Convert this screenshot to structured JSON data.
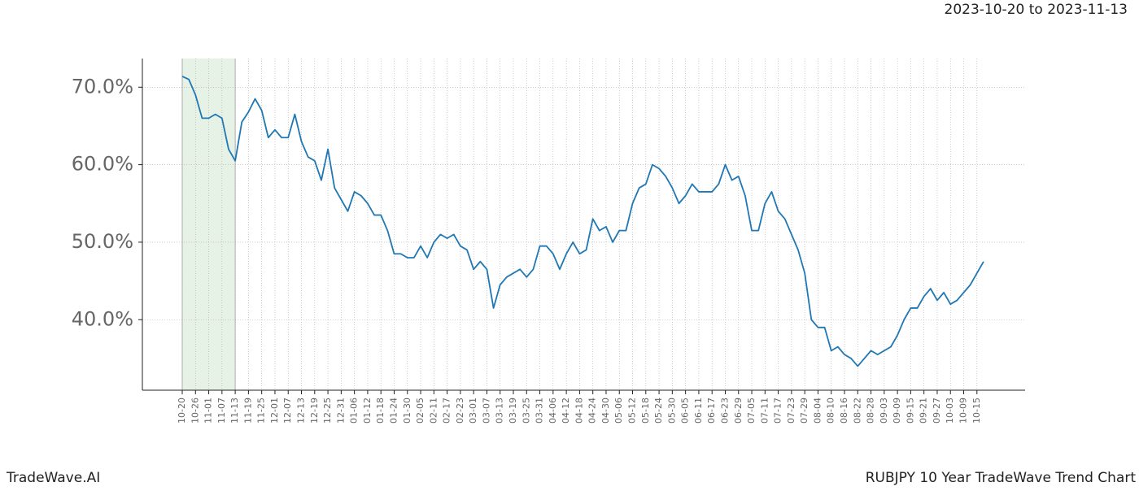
{
  "chart_data": {
    "type": "line",
    "title": "RUBJPY 10 Year TradeWave Trend Chart",
    "subtitle": "2023-10-20 to 2023-11-13",
    "brand": "TradeWave.AI",
    "categories": [
      "10-20",
      null,
      "10-26",
      null,
      "11-01",
      null,
      "11-07",
      null,
      "11-13",
      null,
      "11-19",
      null,
      "11-25",
      null,
      "12-01",
      null,
      "12-07",
      null,
      "12-13",
      null,
      "12-19",
      null,
      "12-25",
      null,
      "12-31",
      null,
      "01-06",
      null,
      "01-12",
      null,
      "01-18",
      null,
      "01-24",
      null,
      "01-30",
      null,
      "02-05",
      null,
      "02-11",
      null,
      "02-17",
      null,
      "02-23",
      null,
      "03-01",
      null,
      "03-07",
      null,
      "03-13",
      null,
      "03-19",
      null,
      "03-25",
      null,
      "03-31",
      null,
      "04-06",
      null,
      "04-12",
      null,
      "04-18",
      null,
      "04-24",
      null,
      "04-30",
      null,
      "05-06",
      null,
      "05-12",
      null,
      "05-18",
      null,
      "05-24",
      null,
      "05-30",
      null,
      "06-05",
      null,
      "06-11",
      null,
      "06-17",
      null,
      "06-23",
      null,
      "06-29",
      null,
      "07-05",
      null,
      "07-11",
      null,
      "07-17",
      null,
      "07-23",
      null,
      "07-29",
      null,
      "08-04",
      null,
      "08-10",
      null,
      "08-16",
      null,
      "08-22",
      null,
      "08-28",
      null,
      "09-03",
      null,
      "09-09",
      null,
      "09-15",
      null,
      "09-21",
      null,
      "09-27",
      null,
      "10-03",
      null,
      "10-09",
      null,
      "10-15",
      null
    ],
    "series": [
      {
        "color": "#1f77b4",
        "values": [
          71.4,
          71.0,
          69,
          66,
          66,
          66.5,
          66,
          62,
          60.5,
          65.5,
          66.8,
          68.5,
          67,
          63.5,
          64.5,
          63.5,
          63.5,
          66.5,
          63,
          61,
          60.5,
          58,
          62,
          57,
          55.5,
          54,
          56.5,
          56,
          55,
          53.5,
          53.5,
          51.5,
          48.5,
          48.5,
          48,
          48,
          49.5,
          48,
          50,
          51,
          50.5,
          51,
          49.5,
          49,
          46.5,
          47.5,
          46.5,
          41.5,
          44.5,
          45.5,
          46,
          46.5,
          45.5,
          46.5,
          49.5,
          49.5,
          48.5,
          46.5,
          48.5,
          50,
          48.5,
          49,
          53,
          51.5,
          52,
          50,
          51.5,
          51.5,
          55,
          57,
          57.5,
          60,
          59.5,
          58.5,
          57,
          55,
          56,
          57.5,
          56.5,
          56.5,
          56.5,
          57.5,
          60,
          58,
          58.5,
          56,
          51.5,
          51.5,
          55,
          56.5,
          54,
          53,
          51,
          49,
          46,
          40,
          39,
          39,
          36,
          36.5,
          35.5,
          35,
          34,
          35,
          36,
          35.5,
          36,
          36.5,
          38,
          40,
          41.5,
          41.5,
          43,
          44,
          42.5,
          43.5,
          42,
          42.5,
          43.5,
          44.5,
          46,
          47.5
        ]
      }
    ],
    "highlight": {
      "from": "10-20",
      "to": "11-13",
      "color": "#e5f2e5"
    },
    "ylim": [
      30.9,
      73.7
    ],
    "yticks": [
      {
        "value": 40,
        "label": "40.0%"
      },
      {
        "value": 50,
        "label": "50.0%"
      },
      {
        "value": 60,
        "label": "60.0%"
      },
      {
        "value": 70,
        "label": "70.0%"
      }
    ],
    "grid": true
  }
}
